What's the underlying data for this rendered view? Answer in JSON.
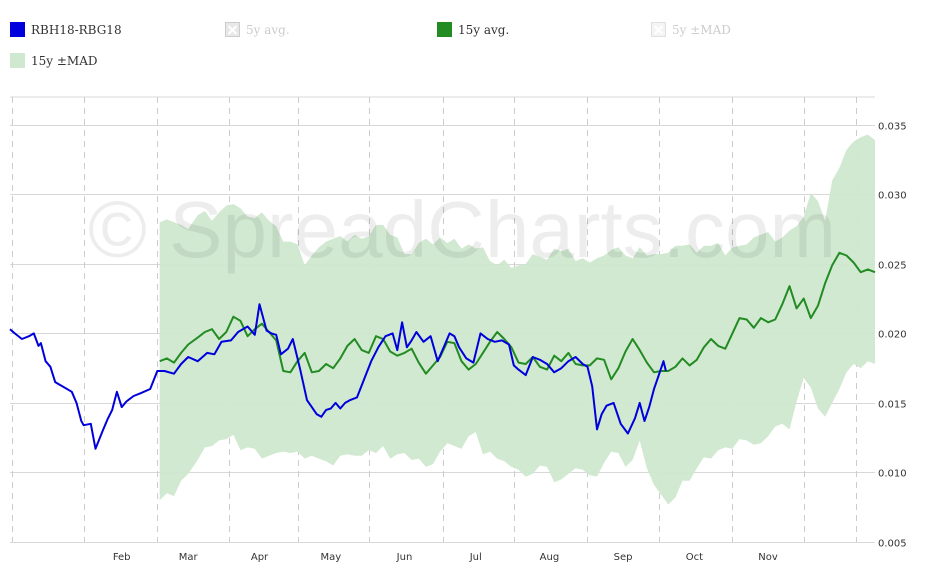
{
  "legend": [
    {
      "label": "RBH18-RBG18",
      "color": "#0000dd",
      "enabled": true
    },
    {
      "label": "5y avg.",
      "color": "#cccccc",
      "enabled": false
    },
    {
      "label": "15y avg.",
      "color": "#228b22",
      "enabled": true
    },
    {
      "label": "5y ±MAD",
      "color": "#cccccc",
      "enabled": false
    },
    {
      "label": "15y ±MAD",
      "color": "#cfe8cf",
      "enabled": true
    }
  ],
  "watermark": "© SpreadCharts.com",
  "chart_data": {
    "type": "line",
    "title": "",
    "xlabel": "",
    "ylabel": "",
    "x_axis": "day of year",
    "xlim": [
      1,
      365
    ],
    "ylim": [
      0.005,
      0.037
    ],
    "grid": true,
    "legend_position": "top",
    "x_ticks": [
      {
        "label": "Feb",
        "at": 48
      },
      {
        "label": "Mar",
        "at": 76
      },
      {
        "label": "Apr",
        "at": 106
      },
      {
        "label": "May",
        "at": 136
      },
      {
        "label": "Jun",
        "at": 167
      },
      {
        "label": "Jul",
        "at": 197
      },
      {
        "label": "Aug",
        "at": 228
      },
      {
        "label": "Sep",
        "at": 259
      },
      {
        "label": "Oct",
        "at": 289
      },
      {
        "label": "Nov",
        "at": 320
      }
    ],
    "x_dashed_gridlines": [
      2,
      32,
      63,
      93,
      122,
      152,
      183,
      213,
      244,
      274,
      305,
      335,
      357
    ],
    "y_ticks": [
      "0.005",
      "0.010",
      "0.015",
      "0.020",
      "0.025",
      "0.030",
      "0.035"
    ],
    "y_tick_values": [
      0.005,
      0.01,
      0.015,
      0.02,
      0.025,
      0.03,
      0.035
    ],
    "series": [
      {
        "name": "RBH18-RBG18",
        "color": "#0000dd",
        "x": [
          1,
          3,
          6,
          9,
          11,
          13,
          14,
          16,
          18,
          20,
          22,
          24,
          27,
          29,
          31,
          32,
          35,
          37,
          40,
          42,
          44,
          46,
          48,
          50,
          53,
          56,
          60,
          63,
          66,
          70,
          73,
          76,
          80,
          84,
          87,
          90,
          94,
          97,
          101,
          104,
          106,
          109,
          111,
          113,
          115,
          118,
          120,
          123,
          126,
          128,
          130,
          132,
          134,
          136,
          138,
          140,
          142,
          144,
          147,
          150,
          153,
          156,
          159,
          162,
          164,
          166,
          168,
          170,
          172,
          175,
          178,
          181,
          184,
          186,
          188,
          190,
          193,
          196,
          199,
          202,
          205,
          208,
          211,
          213,
          215,
          218,
          221,
          224,
          227,
          230,
          233,
          236,
          239,
          242,
          244,
          246,
          248,
          250,
          252,
          255,
          258,
          261,
          264,
          266,
          268,
          270,
          272,
          274,
          276,
          277
        ],
        "values": [
          0.0203,
          0.02,
          0.0196,
          0.0198,
          0.02,
          0.0191,
          0.0193,
          0.018,
          0.0176,
          0.0165,
          0.0163,
          0.0161,
          0.0158,
          0.015,
          0.0137,
          0.0134,
          0.0135,
          0.0117,
          0.013,
          0.0138,
          0.0145,
          0.0158,
          0.0147,
          0.0151,
          0.0155,
          0.0157,
          0.016,
          0.0173,
          0.0173,
          0.0171,
          0.0178,
          0.0183,
          0.018,
          0.0186,
          0.0185,
          0.0194,
          0.0195,
          0.0201,
          0.0205,
          0.0199,
          0.0221,
          0.0202,
          0.02,
          0.0199,
          0.0185,
          0.0189,
          0.0196,
          0.0175,
          0.0152,
          0.0147,
          0.0142,
          0.014,
          0.0145,
          0.0146,
          0.015,
          0.0146,
          0.015,
          0.0152,
          0.0154,
          0.0167,
          0.018,
          0.019,
          0.0198,
          0.02,
          0.0188,
          0.0208,
          0.019,
          0.0195,
          0.0201,
          0.0194,
          0.0198,
          0.018,
          0.0192,
          0.02,
          0.0198,
          0.019,
          0.0182,
          0.0179,
          0.02,
          0.0196,
          0.0194,
          0.0195,
          0.0192,
          0.0177,
          0.0174,
          0.017,
          0.0183,
          0.0181,
          0.0178,
          0.0172,
          0.0175,
          0.018,
          0.0183,
          0.0178,
          0.0176,
          0.0162,
          0.0131,
          0.0142,
          0.0148,
          0.015,
          0.0135,
          0.0128,
          0.0139,
          0.015,
          0.0137,
          0.0147,
          0.016,
          0.017,
          0.018,
          0.0173
        ]
      },
      {
        "name": "15y avg.",
        "color": "#228b22",
        "x": [
          64,
          67,
          70,
          73,
          76,
          80,
          83,
          86,
          89,
          92,
          95,
          98,
          101,
          104,
          107,
          110,
          113,
          116,
          119,
          122,
          125,
          128,
          131,
          134,
          137,
          140,
          143,
          146,
          149,
          152,
          155,
          158,
          161,
          164,
          167,
          170,
          173,
          176,
          179,
          182,
          185,
          188,
          191,
          194,
          197,
          200,
          203,
          206,
          209,
          212,
          215,
          218,
          221,
          224,
          227,
          230,
          233,
          236,
          239,
          242,
          245,
          248,
          251,
          254,
          257,
          260,
          263,
          266,
          269,
          272,
          275,
          278,
          281,
          284,
          287,
          290,
          293,
          296,
          299,
          302,
          305,
          308,
          311,
          314,
          317,
          320,
          323,
          326,
          329,
          332,
          335,
          338,
          341,
          344,
          347,
          350,
          353,
          356,
          359,
          362,
          365
        ],
        "values": [
          0.018,
          0.0182,
          0.0179,
          0.0186,
          0.0192,
          0.0197,
          0.0201,
          0.0203,
          0.0196,
          0.0201,
          0.0212,
          0.0209,
          0.0198,
          0.0203,
          0.0207,
          0.0201,
          0.0195,
          0.0173,
          0.0172,
          0.018,
          0.0186,
          0.0172,
          0.0173,
          0.0178,
          0.0175,
          0.0182,
          0.0191,
          0.0196,
          0.0188,
          0.0186,
          0.0198,
          0.0196,
          0.0187,
          0.0184,
          0.0186,
          0.0189,
          0.0179,
          0.0171,
          0.0177,
          0.0183,
          0.0194,
          0.0193,
          0.018,
          0.0174,
          0.0178,
          0.0186,
          0.0194,
          0.0201,
          0.0196,
          0.019,
          0.0179,
          0.0178,
          0.0183,
          0.0176,
          0.0174,
          0.0184,
          0.018,
          0.0186,
          0.0178,
          0.0177,
          0.0177,
          0.0182,
          0.0181,
          0.0167,
          0.0175,
          0.0187,
          0.0196,
          0.0188,
          0.0179,
          0.0172,
          0.0173,
          0.0173,
          0.0176,
          0.0182,
          0.0177,
          0.0181,
          0.019,
          0.0196,
          0.0191,
          0.0189,
          0.02,
          0.0211,
          0.021,
          0.0204,
          0.0211,
          0.0208,
          0.021,
          0.0221,
          0.0234,
          0.0218,
          0.0225,
          0.0211,
          0.022,
          0.0236,
          0.0249,
          0.0258,
          0.0256,
          0.0251,
          0.0244,
          0.0246,
          0.0244
        ]
      },
      {
        "name": "15y ±MAD",
        "color": "#cfe8cf",
        "x": [
          64,
          67,
          70,
          73,
          76,
          80,
          83,
          86,
          89,
          92,
          95,
          98,
          101,
          104,
          107,
          110,
          113,
          116,
          119,
          122,
          125,
          128,
          131,
          134,
          137,
          140,
          143,
          146,
          149,
          152,
          155,
          158,
          161,
          164,
          167,
          170,
          173,
          176,
          179,
          182,
          185,
          188,
          191,
          194,
          197,
          200,
          203,
          206,
          209,
          212,
          215,
          218,
          221,
          224,
          227,
          230,
          233,
          236,
          239,
          242,
          245,
          248,
          251,
          254,
          257,
          260,
          263,
          266,
          269,
          272,
          275,
          278,
          281,
          284,
          287,
          290,
          293,
          296,
          299,
          302,
          305,
          308,
          311,
          314,
          317,
          320,
          323,
          326,
          329,
          332,
          335,
          338,
          341,
          344,
          347,
          350,
          353,
          356,
          359,
          362,
          365
        ],
        "upper": [
          0.028,
          0.0282,
          0.028,
          0.0278,
          0.0275,
          0.0285,
          0.0288,
          0.0281,
          0.0287,
          0.0292,
          0.0293,
          0.029,
          0.0284,
          0.0283,
          0.0287,
          0.0281,
          0.0277,
          0.0266,
          0.0266,
          0.0264,
          0.0249,
          0.0256,
          0.0262,
          0.0266,
          0.0268,
          0.027,
          0.0266,
          0.0271,
          0.0268,
          0.027,
          0.0278,
          0.0278,
          0.0271,
          0.0269,
          0.0257,
          0.0257,
          0.0265,
          0.0268,
          0.0264,
          0.0269,
          0.0265,
          0.0268,
          0.0261,
          0.0264,
          0.0261,
          0.0262,
          0.0252,
          0.0249,
          0.0253,
          0.0247,
          0.0249,
          0.025,
          0.0257,
          0.0255,
          0.0253,
          0.0261,
          0.0259,
          0.0261,
          0.0252,
          0.0254,
          0.0251,
          0.0254,
          0.0256,
          0.026,
          0.0262,
          0.0256,
          0.0254,
          0.0262,
          0.0256,
          0.0257,
          0.0257,
          0.0258,
          0.0263,
          0.0263,
          0.0264,
          0.0258,
          0.0263,
          0.0263,
          0.0265,
          0.0256,
          0.0262,
          0.0263,
          0.0264,
          0.0269,
          0.0271,
          0.0273,
          0.0266,
          0.0269,
          0.0274,
          0.0277,
          0.0284,
          0.0301,
          0.0295,
          0.0281,
          0.031,
          0.0319,
          0.0332,
          0.0338,
          0.0341,
          0.0343,
          0.0339
        ],
        "lower": [
          0.008,
          0.0085,
          0.0083,
          0.0094,
          0.0099,
          0.0109,
          0.0118,
          0.0119,
          0.0123,
          0.0124,
          0.0127,
          0.0116,
          0.0118,
          0.0117,
          0.011,
          0.0112,
          0.0114,
          0.0115,
          0.0114,
          0.0115,
          0.011,
          0.0112,
          0.011,
          0.0108,
          0.0105,
          0.0112,
          0.0113,
          0.0112,
          0.0112,
          0.0116,
          0.0114,
          0.0119,
          0.011,
          0.0113,
          0.0114,
          0.0109,
          0.011,
          0.0104,
          0.0106,
          0.0115,
          0.0121,
          0.0119,
          0.0117,
          0.0126,
          0.0129,
          0.0113,
          0.0115,
          0.011,
          0.0108,
          0.0104,
          0.0102,
          0.0097,
          0.0099,
          0.0105,
          0.0104,
          0.0093,
          0.0095,
          0.0099,
          0.0103,
          0.0102,
          0.0098,
          0.0097,
          0.0107,
          0.0115,
          0.0114,
          0.0104,
          0.0109,
          0.0123,
          0.0103,
          0.0091,
          0.0084,
          0.0077,
          0.0082,
          0.0094,
          0.0094,
          0.0103,
          0.0111,
          0.011,
          0.0116,
          0.0118,
          0.0117,
          0.0124,
          0.0123,
          0.012,
          0.0121,
          0.0126,
          0.0133,
          0.0135,
          0.0131,
          0.0151,
          0.0168,
          0.0161,
          0.0146,
          0.014,
          0.015,
          0.016,
          0.0172,
          0.0178,
          0.0175,
          0.018,
          0.0178
        ]
      }
    ]
  }
}
